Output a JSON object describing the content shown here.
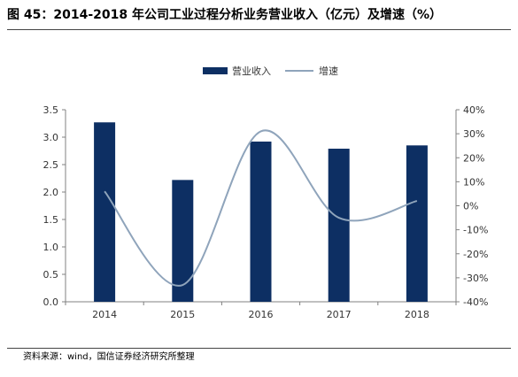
{
  "figure": {
    "title": "图 45：2014-2018 年公司工业过程分析业务营业收入（亿元）及增速（%）",
    "source": "资料来源：wind，国信证券经济研究所整理"
  },
  "chart_data": {
    "type": "bar+line",
    "categories": [
      "2014",
      "2015",
      "2016",
      "2017",
      "2018"
    ],
    "series": [
      {
        "name": "营业收入",
        "type": "bar",
        "axis": "left",
        "color": "#0d2f63",
        "values": [
          3.27,
          2.22,
          2.92,
          2.79,
          2.85
        ]
      },
      {
        "name": "增速",
        "type": "line",
        "axis": "right",
        "color": "#8fa4bb",
        "values": [
          6,
          -33,
          31,
          -5,
          2
        ]
      }
    ],
    "y_left": {
      "min": 0,
      "max": 3.5,
      "step": 0.5,
      "ticks": [
        "0.0",
        "0.5",
        "1.0",
        "1.5",
        "2.0",
        "2.5",
        "3.0",
        "3.5"
      ]
    },
    "y_right": {
      "min": -40,
      "max": 40,
      "step": 10,
      "ticks": [
        "-40%",
        "-30%",
        "-20%",
        "-10%",
        "0%",
        "10%",
        "20%",
        "30%",
        "40%"
      ]
    },
    "legend_position": "top-center",
    "grid": false,
    "xlabel": "",
    "ylabel": ""
  }
}
